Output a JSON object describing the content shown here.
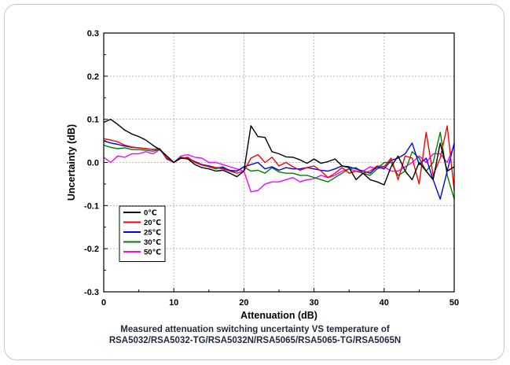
{
  "caption": {
    "line1": "Measured attenuation switching uncertainty VS temperature of",
    "line2": "RSA5032/RSA5032-TG/RSA5032N/RSA5065/RSA5065-TG/RSA5065N"
  },
  "chart_data": {
    "type": "line",
    "xlabel": "Attenuation (dB)",
    "ylabel": "Uncertainty (dB)",
    "xlim": [
      0,
      50
    ],
    "ylim": [
      -0.3,
      0.3
    ],
    "xticks": [
      "0",
      "10",
      "20",
      "30",
      "40",
      "50"
    ],
    "yticks": [
      "-0.3",
      "-0.2",
      "-0.1",
      "0.0",
      "0.1",
      "0.2",
      "0.3"
    ],
    "grid": true,
    "legend_position": "lower-left",
    "x": [
      0,
      1,
      2,
      3,
      4,
      5,
      6,
      7,
      8,
      9,
      10,
      11,
      12,
      13,
      14,
      15,
      16,
      17,
      18,
      19,
      20,
      21,
      22,
      23,
      24,
      25,
      26,
      27,
      28,
      29,
      30,
      31,
      32,
      33,
      34,
      35,
      36,
      37,
      38,
      39,
      40,
      41,
      42,
      43,
      44,
      45,
      46,
      47,
      48,
      49,
      50
    ],
    "series": [
      {
        "name": "0℃",
        "color": "#000000",
        "values": [
          0.093,
          0.1,
          0.088,
          0.075,
          0.066,
          0.06,
          0.052,
          0.04,
          0.03,
          0.015,
          0.0,
          0.01,
          0.008,
          -0.005,
          -0.012,
          -0.015,
          -0.02,
          -0.018,
          -0.025,
          -0.033,
          -0.02,
          0.085,
          0.06,
          0.058,
          0.025,
          0.02,
          0.013,
          0.012,
          0.006,
          -0.002,
          0.008,
          -0.002,
          0.002,
          0.008,
          -0.008,
          -0.012,
          -0.04,
          -0.025,
          -0.04,
          -0.045,
          -0.052,
          -0.01,
          0.015,
          -0.02,
          -0.04,
          0.0,
          -0.02,
          -0.04,
          0.045,
          -0.02,
          -0.01
        ]
      },
      {
        "name": "20℃",
        "color": "#ff0000",
        "values": [
          0.055,
          0.052,
          0.048,
          0.04,
          0.036,
          0.034,
          0.032,
          0.03,
          0.032,
          0.01,
          0.0,
          0.01,
          0.012,
          0.0,
          -0.006,
          -0.01,
          -0.012,
          -0.015,
          -0.02,
          -0.025,
          -0.02,
          0.01,
          0.018,
          0.0,
          0.012,
          -0.008,
          0.0,
          -0.01,
          -0.018,
          -0.012,
          -0.008,
          -0.02,
          -0.035,
          -0.025,
          -0.012,
          -0.025,
          -0.02,
          -0.025,
          -0.02,
          -0.008,
          -0.01,
          0.01,
          -0.04,
          0.015,
          0.01,
          -0.05,
          0.07,
          -0.03,
          0.01,
          0.085,
          -0.065
        ]
      },
      {
        "name": "25℃",
        "color": "#0000ff",
        "values": [
          0.05,
          0.045,
          0.042,
          0.038,
          0.035,
          0.034,
          0.032,
          0.03,
          0.032,
          0.008,
          0.0,
          0.01,
          0.01,
          0.002,
          -0.005,
          -0.008,
          -0.012,
          -0.012,
          -0.018,
          -0.02,
          -0.01,
          -0.005,
          0.0,
          -0.015,
          -0.01,
          -0.018,
          -0.012,
          -0.015,
          -0.015,
          -0.012,
          -0.015,
          -0.018,
          -0.02,
          -0.015,
          -0.008,
          -0.01,
          -0.015,
          -0.02,
          -0.025,
          -0.01,
          -0.015,
          0.005,
          0.01,
          0.02,
          0.045,
          -0.005,
          0.01,
          -0.04,
          -0.085,
          -0.02,
          0.045
        ]
      },
      {
        "name": "30℃",
        "color": "#008000",
        "values": [
          0.04,
          0.035,
          0.032,
          0.034,
          0.03,
          0.03,
          0.028,
          0.026,
          0.03,
          0.01,
          0.0,
          0.012,
          0.01,
          0.0,
          -0.005,
          -0.01,
          -0.015,
          -0.01,
          -0.02,
          -0.02,
          -0.01,
          -0.02,
          -0.018,
          -0.025,
          -0.012,
          -0.022,
          -0.025,
          -0.025,
          -0.03,
          -0.03,
          -0.035,
          -0.04,
          -0.045,
          -0.035,
          -0.025,
          -0.015,
          -0.012,
          -0.025,
          -0.03,
          -0.015,
          0.0,
          0.0,
          -0.03,
          -0.02,
          0.025,
          0.01,
          -0.02,
          0.0,
          0.07,
          -0.03,
          -0.085
        ]
      },
      {
        "name": "50℃",
        "color": "#ff00ff",
        "values": [
          0.012,
          0.0,
          0.015,
          0.012,
          0.02,
          0.02,
          0.025,
          0.02,
          0.03,
          0.01,
          0.0,
          0.015,
          0.018,
          0.012,
          0.01,
          0.0,
          0.0,
          -0.005,
          -0.01,
          -0.015,
          -0.02,
          -0.068,
          -0.065,
          -0.05,
          -0.045,
          -0.045,
          -0.04,
          -0.035,
          -0.045,
          -0.04,
          -0.038,
          -0.03,
          -0.035,
          -0.03,
          -0.02,
          -0.015,
          -0.02,
          -0.02,
          -0.01,
          -0.015,
          -0.01,
          -0.02,
          -0.02,
          -0.01,
          0.0,
          0.015,
          0.0,
          0.02,
          0.02,
          0.0,
          0.04
        ]
      }
    ]
  }
}
